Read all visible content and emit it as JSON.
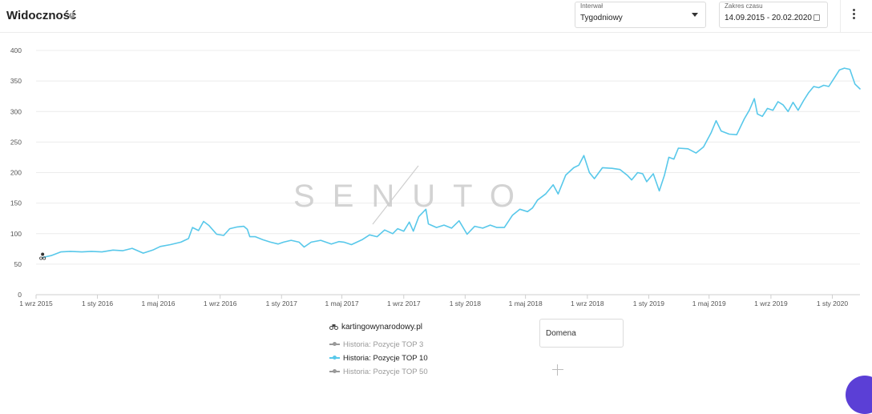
{
  "header": {
    "title": "Widoczność",
    "info_icon": "info-icon",
    "interval": {
      "label": "Interwał",
      "value": "Tygodniowy"
    },
    "date_range": {
      "label": "Zakres czasu",
      "value": "14.09.2015 - 20.02.2020"
    },
    "menu_icon": "more-vertical-icon"
  },
  "watermark": "SENUTO",
  "legend": {
    "domain": "kartingowynarodowy.pl",
    "items": [
      {
        "label": "Historia: Pozycje TOP 3",
        "active": false
      },
      {
        "label": "Historia: Pozycje TOP 10",
        "active": true
      },
      {
        "label": "Historia: Pozycje TOP 50",
        "active": false
      }
    ],
    "domain_input_label": "Domena",
    "add_icon": "plus-icon"
  },
  "chart_data": {
    "type": "line",
    "title": "",
    "xlabel": "",
    "ylabel": "",
    "ylim": [
      0,
      400
    ],
    "yticks": [
      0,
      50,
      100,
      150,
      200,
      250,
      300,
      350,
      400
    ],
    "xticks": [
      "1 wrz 2015",
      "1 sty 2016",
      "1 maj 2016",
      "1 wrz 2016",
      "1 sty 2017",
      "1 maj 2017",
      "1 wrz 2017",
      "1 sty 2018",
      "1 maj 2018",
      "1 wrz 2018",
      "1 sty 2019",
      "1 maj 2019",
      "1 wrz 2019",
      "1 sty 2020"
    ],
    "xtick_dates": [
      "2015-09-01",
      "2016-01-01",
      "2016-05-01",
      "2016-09-01",
      "2017-01-01",
      "2017-05-01",
      "2017-09-01",
      "2018-01-01",
      "2018-05-01",
      "2018-09-01",
      "2019-01-01",
      "2019-05-01",
      "2019-09-01",
      "2020-01-01"
    ],
    "grid": true,
    "color": "#58c8ea",
    "series": [
      {
        "name": "Historia: Pozycje TOP 10",
        "points": [
          [
            "2015-09-14",
            61
          ],
          [
            "2015-10-01",
            64
          ],
          [
            "2015-10-20",
            70
          ],
          [
            "2015-11-08",
            71
          ],
          [
            "2015-12-01",
            70
          ],
          [
            "2015-12-20",
            71
          ],
          [
            "2016-01-10",
            70
          ],
          [
            "2016-02-01",
            73
          ],
          [
            "2016-02-20",
            72
          ],
          [
            "2016-03-10",
            76
          ],
          [
            "2016-04-01",
            68
          ],
          [
            "2016-04-20",
            73
          ],
          [
            "2016-05-05",
            79
          ],
          [
            "2016-05-25",
            82
          ],
          [
            "2016-06-15",
            86
          ],
          [
            "2016-06-30",
            92
          ],
          [
            "2016-07-08",
            110
          ],
          [
            "2016-07-20",
            105
          ],
          [
            "2016-07-30",
            120
          ],
          [
            "2016-08-10",
            113
          ],
          [
            "2016-08-25",
            99
          ],
          [
            "2016-09-08",
            97
          ],
          [
            "2016-09-20",
            108
          ],
          [
            "2016-10-05",
            111
          ],
          [
            "2016-10-18",
            112
          ],
          [
            "2016-10-25",
            107
          ],
          [
            "2016-10-30",
            95
          ],
          [
            "2016-11-10",
            95
          ],
          [
            "2016-11-25",
            90
          ],
          [
            "2016-12-10",
            86
          ],
          [
            "2016-12-25",
            83
          ],
          [
            "2017-01-05",
            86
          ],
          [
            "2017-01-20",
            89
          ],
          [
            "2017-02-05",
            86
          ],
          [
            "2017-02-15",
            78
          ],
          [
            "2017-03-01",
            86
          ],
          [
            "2017-03-20",
            89
          ],
          [
            "2017-04-10",
            83
          ],
          [
            "2017-04-25",
            87
          ],
          [
            "2017-05-05",
            86
          ],
          [
            "2017-05-20",
            82
          ],
          [
            "2017-06-10",
            90
          ],
          [
            "2017-06-25",
            98
          ],
          [
            "2017-07-10",
            95
          ],
          [
            "2017-07-25",
            106
          ],
          [
            "2017-08-10",
            100
          ],
          [
            "2017-08-20",
            108
          ],
          [
            "2017-09-01",
            104
          ],
          [
            "2017-09-12",
            119
          ],
          [
            "2017-09-20",
            104
          ],
          [
            "2017-10-01",
            128
          ],
          [
            "2017-10-15",
            140
          ],
          [
            "2017-10-20",
            116
          ],
          [
            "2017-11-05",
            110
          ],
          [
            "2017-11-20",
            114
          ],
          [
            "2017-12-05",
            109
          ],
          [
            "2017-12-20",
            121
          ],
          [
            "2018-01-05",
            99
          ],
          [
            "2018-01-20",
            112
          ],
          [
            "2018-02-05",
            109
          ],
          [
            "2018-02-20",
            114
          ],
          [
            "2018-03-05",
            110
          ],
          [
            "2018-03-20",
            110
          ],
          [
            "2018-04-05",
            130
          ],
          [
            "2018-04-20",
            140
          ],
          [
            "2018-05-05",
            136
          ],
          [
            "2018-05-15",
            142
          ],
          [
            "2018-05-25",
            155
          ],
          [
            "2018-06-10",
            165
          ],
          [
            "2018-06-25",
            180
          ],
          [
            "2018-07-05",
            165
          ],
          [
            "2018-07-20",
            196
          ],
          [
            "2018-08-05",
            208
          ],
          [
            "2018-08-15",
            212
          ],
          [
            "2018-08-25",
            228
          ],
          [
            "2018-09-05",
            200
          ],
          [
            "2018-09-15",
            190
          ],
          [
            "2018-10-01",
            208
          ],
          [
            "2018-10-20",
            207
          ],
          [
            "2018-11-05",
            205
          ],
          [
            "2018-11-20",
            195
          ],
          [
            "2018-11-28",
            188
          ],
          [
            "2018-12-10",
            200
          ],
          [
            "2018-12-20",
            198
          ],
          [
            "2018-12-28",
            185
          ],
          [
            "2019-01-10",
            198
          ],
          [
            "2019-01-22",
            170
          ],
          [
            "2019-02-01",
            195
          ],
          [
            "2019-02-10",
            225
          ],
          [
            "2019-02-20",
            222
          ],
          [
            "2019-03-01",
            240
          ],
          [
            "2019-03-20",
            239
          ],
          [
            "2019-04-05",
            232
          ],
          [
            "2019-04-20",
            242
          ],
          [
            "2019-05-05",
            265
          ],
          [
            "2019-05-15",
            285
          ],
          [
            "2019-05-25",
            268
          ],
          [
            "2019-06-10",
            263
          ],
          [
            "2019-06-25",
            262
          ],
          [
            "2019-07-10",
            288
          ],
          [
            "2019-07-20",
            302
          ],
          [
            "2019-07-30",
            321
          ],
          [
            "2019-08-05",
            296
          ],
          [
            "2019-08-15",
            292
          ],
          [
            "2019-08-25",
            305
          ],
          [
            "2019-09-05",
            302
          ],
          [
            "2019-09-15",
            316
          ],
          [
            "2019-09-25",
            311
          ],
          [
            "2019-10-05",
            300
          ],
          [
            "2019-10-15",
            315
          ],
          [
            "2019-10-25",
            302
          ],
          [
            "2019-11-05",
            318
          ],
          [
            "2019-11-15",
            331
          ],
          [
            "2019-11-25",
            341
          ],
          [
            "2019-12-05",
            339
          ],
          [
            "2019-12-15",
            343
          ],
          [
            "2019-12-25",
            341
          ],
          [
            "2020-01-05",
            355
          ],
          [
            "2020-01-15",
            368
          ],
          [
            "2020-01-25",
            371
          ],
          [
            "2020-02-05",
            369
          ],
          [
            "2020-02-15",
            345
          ],
          [
            "2020-02-25",
            337
          ]
        ]
      }
    ]
  }
}
